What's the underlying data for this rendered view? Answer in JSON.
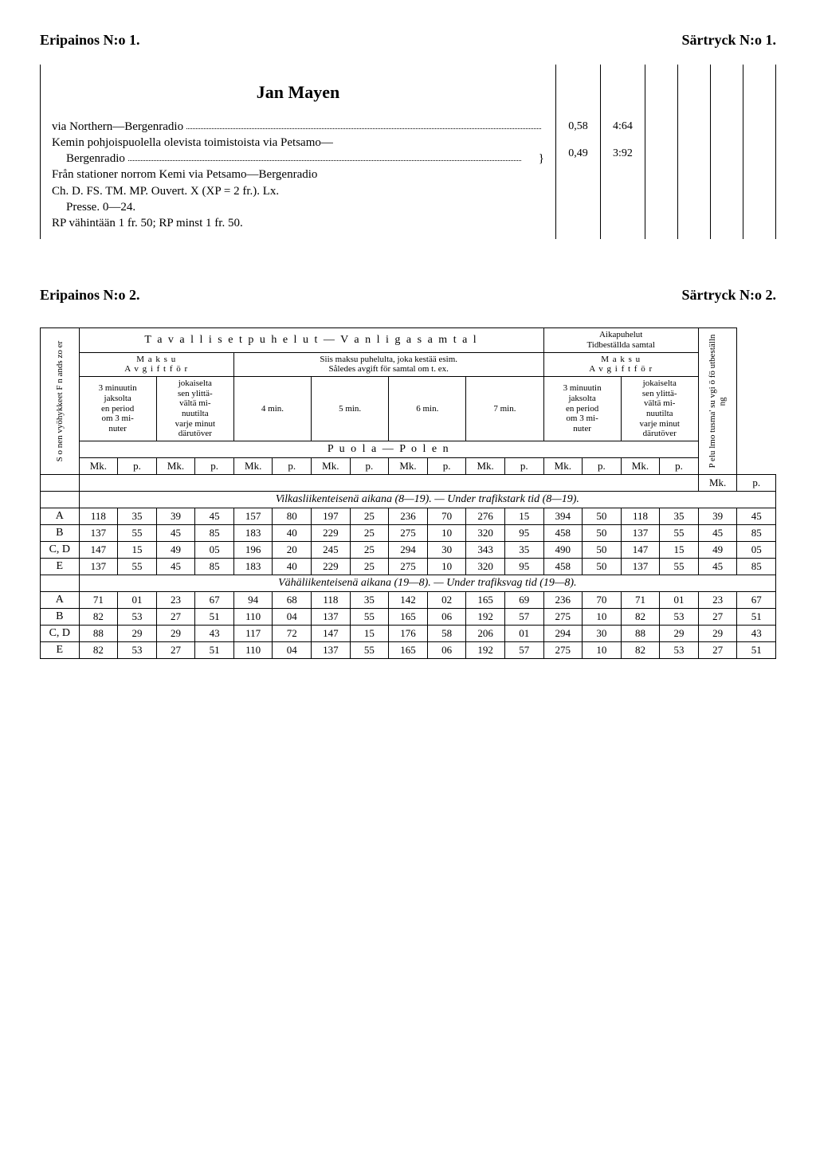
{
  "header1": {
    "left": "Eripainos N:o 1.",
    "right": "Särtryck N:o 1."
  },
  "section1": {
    "title": "Jan Mayen",
    "line1_left": "via Northern—Bergenradio",
    "line2": "Kemin pohjoispuolella olevista toimistoista via Petsamo—",
    "line2b_left": "Bergenradio",
    "line3": "Från stationer norrom Kemi via Petsamo—Bergenradio",
    "line4": "Ch. D. FS. TM. MP. Ouvert. X (XP = 2 fr.). Lx.",
    "line5": "Presse. 0—24.",
    "line6": "RP vähintään 1 fr. 50; RP minst 1 fr. 50.",
    "col_vals": [
      [
        "0,58",
        "0,49"
      ],
      [
        "4:64",
        "3:92"
      ]
    ]
  },
  "header2": {
    "left": "Eripainos N:o 2.",
    "right": "Särtryck N:o 2."
  },
  "table": {
    "side_label": "S o nen vyöhykkeet\nF n ands zo er",
    "right_side_label": "P elu lmo tusma' su\nvgi ö fö utbeställn ng",
    "top_ordinary": "T a v a l l i s e t   p u h e l u t  —  V a n l i g a   s a m t a l",
    "top_time": "Aikapuhelut\nTidbeställda samtal",
    "maksu": "M a k s u\nA v g i f t   f ö r",
    "siis": "Siis maksu puhelulta, joka kestää esim.\nSåledes avgift för samtal om t. ex.",
    "col_3min": "3 minuutin\njaksolta\nen period\nom 3 mi-\nnuter",
    "col_joka": "jokaiselta\nsen ylittä-\nvältä mi-\nnuutilta\nvarje minut\ndärutöver",
    "min4": "4 min.",
    "min5": "5 min.",
    "min6": "6 min.",
    "min7": "7 min.",
    "puola": "P u o l a  —  P o l e n",
    "mk": "Mk.",
    "p": "p.",
    "title_peak": "Vilkasliikenteisenä aikana (8—19). — Under trafikstark tid (8—19).",
    "title_off": "Vähäliikenteisenä aikana (19—8). — Under trafiksvag tid (19—8).",
    "zones": [
      "A",
      "B",
      "C, D",
      "E"
    ],
    "peak_rows": [
      [
        "118",
        "35",
        "39",
        "45",
        "157",
        "80",
        "197",
        "25",
        "236",
        "70",
        "276",
        "15",
        "394",
        "50",
        "118",
        "35",
        "39",
        "45"
      ],
      [
        "137",
        "55",
        "45",
        "85",
        "183",
        "40",
        "229",
        "25",
        "275",
        "10",
        "320",
        "95",
        "458",
        "50",
        "137",
        "55",
        "45",
        "85"
      ],
      [
        "147",
        "15",
        "49",
        "05",
        "196",
        "20",
        "245",
        "25",
        "294",
        "30",
        "343",
        "35",
        "490",
        "50",
        "147",
        "15",
        "49",
        "05"
      ],
      [
        "137",
        "55",
        "45",
        "85",
        "183",
        "40",
        "229",
        "25",
        "275",
        "10",
        "320",
        "95",
        "458",
        "50",
        "137",
        "55",
        "45",
        "85"
      ]
    ],
    "off_rows": [
      [
        "71",
        "01",
        "23",
        "67",
        "94",
        "68",
        "118",
        "35",
        "142",
        "02",
        "165",
        "69",
        "236",
        "70",
        "71",
        "01",
        "23",
        "67"
      ],
      [
        "82",
        "53",
        "27",
        "51",
        "110",
        "04",
        "137",
        "55",
        "165",
        "06",
        "192",
        "57",
        "275",
        "10",
        "82",
        "53",
        "27",
        "51"
      ],
      [
        "88",
        "29",
        "29",
        "43",
        "117",
        "72",
        "147",
        "15",
        "176",
        "58",
        "206",
        "01",
        "294",
        "30",
        "88",
        "29",
        "29",
        "43"
      ],
      [
        "82",
        "53",
        "27",
        "51",
        "110",
        "04",
        "137",
        "55",
        "165",
        "06",
        "192",
        "57",
        "275",
        "10",
        "82",
        "53",
        "27",
        "51"
      ]
    ]
  }
}
